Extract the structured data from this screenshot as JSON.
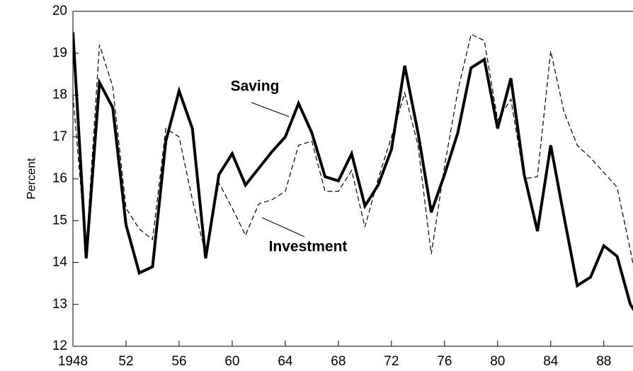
{
  "chart_data": {
    "type": "line",
    "y_label": "Percent",
    "x": [
      1948,
      1949,
      1950,
      1951,
      1952,
      1953,
      1954,
      1955,
      1956,
      1957,
      1958,
      1959,
      1960,
      1961,
      1962,
      1963,
      1964,
      1965,
      1966,
      1967,
      1968,
      1969,
      1970,
      1971,
      1972,
      1973,
      1974,
      1975,
      1976,
      1977,
      1978,
      1979,
      1980,
      1981,
      1982,
      1983,
      1984,
      1985,
      1986,
      1987,
      1988,
      1989,
      1990,
      1991
    ],
    "series": [
      {
        "name": "Saving",
        "color": "#000000",
        "dash": false,
        "values": [
          19.5,
          14.1,
          18.3,
          17.7,
          14.9,
          13.75,
          13.9,
          16.9,
          18.1,
          17.2,
          14.1,
          16.1,
          16.6,
          15.85,
          16.25,
          16.65,
          17.0,
          17.8,
          17.1,
          16.05,
          15.95,
          16.6,
          15.35,
          15.85,
          16.7,
          18.7,
          17.1,
          15.2,
          16.1,
          17.1,
          18.65,
          18.85,
          17.2,
          18.4,
          16.1,
          14.75,
          16.8,
          15.1,
          13.45,
          13.65,
          14.4,
          14.15,
          13.0,
          12.5
        ]
      },
      {
        "name": "Investment",
        "color": "#000000",
        "dash": true,
        "values": [
          18.0,
          14.3,
          19.2,
          18.2,
          15.3,
          14.8,
          14.55,
          17.2,
          17.0,
          15.5,
          14.2,
          15.9,
          15.3,
          14.65,
          15.4,
          15.5,
          15.7,
          16.8,
          16.9,
          15.7,
          15.7,
          16.2,
          14.85,
          16.0,
          17.0,
          18.05,
          16.8,
          14.2,
          16.3,
          18.1,
          19.45,
          19.3,
          17.4,
          17.9,
          16.0,
          16.05,
          19.05,
          17.6,
          16.8,
          16.5,
          16.15,
          15.8,
          14.3,
          12.6
        ]
      }
    ],
    "xlim": [
      1948,
      1990.2
    ],
    "xticks": [
      {
        "value": 1948,
        "label": "1948"
      },
      {
        "value": 1952,
        "label": "52"
      },
      {
        "value": 1956,
        "label": "56"
      },
      {
        "value": 1960,
        "label": "60"
      },
      {
        "value": 1964,
        "label": "64"
      },
      {
        "value": 1968,
        "label": "68"
      },
      {
        "value": 1972,
        "label": "72"
      },
      {
        "value": 1976,
        "label": "76"
      },
      {
        "value": 1980,
        "label": "80"
      },
      {
        "value": 1984,
        "label": "84"
      },
      {
        "value": 1988,
        "label": "88"
      }
    ],
    "ylim": [
      12,
      20
    ],
    "yticks": [
      12,
      13,
      14,
      15,
      16,
      17,
      18,
      19,
      20
    ]
  }
}
